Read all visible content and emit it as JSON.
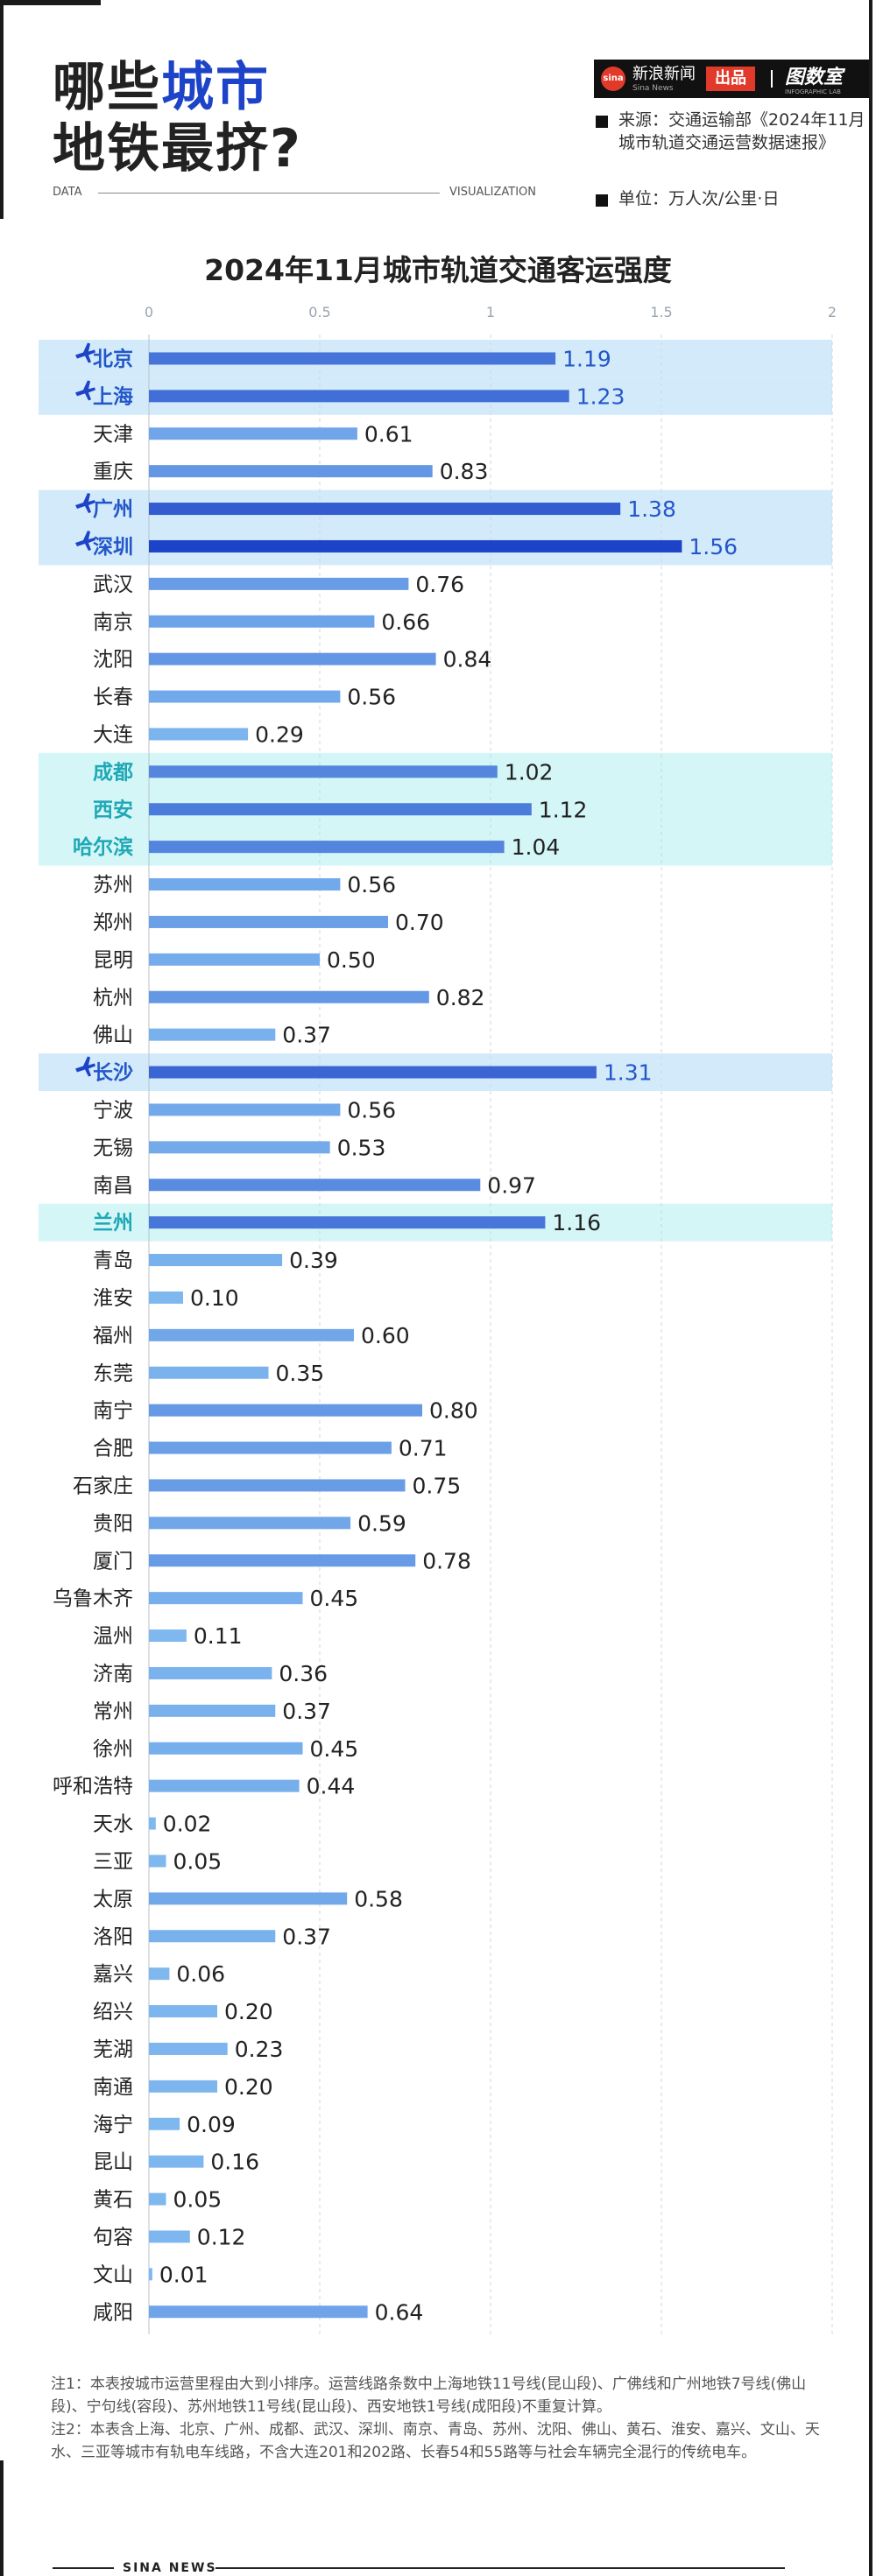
{
  "header": {
    "title_line1_pre": "哪些",
    "title_line1_hi": "城市",
    "title_line2": "地铁最挤?",
    "data_label": "DATA",
    "visualization_label": "VISUALIZATION"
  },
  "brand": {
    "logo_text": "sina",
    "name": "新浪新闻",
    "sub": "Sina News",
    "out_label": "出品",
    "lab": "图数室",
    "lab_sub": "INFOGRAPHIC LAB"
  },
  "meta": {
    "source": "来源：交通运输部《2024年11月城市轨道交通运营数据速报》",
    "unit": "单位：万人次/公里·日"
  },
  "colors": {
    "title_highlight": "#1d43c8",
    "bar_light": "#7fb8ef",
    "bar_dark": "#1d43c8",
    "band_blue": "#d3eafb",
    "band_teal": "#d4f6f7",
    "label_blue": "#2357c9",
    "label_teal": "#1fa8b6"
  },
  "chart_data": {
    "type": "bar",
    "orientation": "horizontal",
    "title": "2024年11月城市轨道交通客运强度",
    "xlim": [
      0,
      2
    ],
    "xticks": [
      "0",
      "0.5",
      "1",
      "1.5",
      "2"
    ],
    "grid": true,
    "categories": [
      "北京",
      "上海",
      "天津",
      "重庆",
      "广州",
      "深圳",
      "武汉",
      "南京",
      "沈阳",
      "长春",
      "大连",
      "成都",
      "西安",
      "哈尔滨",
      "苏州",
      "郑州",
      "昆明",
      "杭州",
      "佛山",
      "长沙",
      "宁波",
      "无锡",
      "南昌",
      "兰州",
      "青岛",
      "淮安",
      "福州",
      "东莞",
      "南宁",
      "合肥",
      "石家庄",
      "贵阳",
      "厦门",
      "乌鲁木齐",
      "温州",
      "济南",
      "常州",
      "徐州",
      "呼和浩特",
      "天水",
      "三亚",
      "太原",
      "洛阳",
      "嘉兴",
      "绍兴",
      "芜湖",
      "南通",
      "海宁",
      "昆山",
      "黄石",
      "句容",
      "文山",
      "咸阳"
    ],
    "values": [
      1.19,
      1.23,
      0.61,
      0.83,
      1.38,
      1.56,
      0.76,
      0.66,
      0.84,
      0.56,
      0.29,
      1.02,
      1.12,
      1.04,
      0.56,
      0.7,
      0.5,
      0.82,
      0.37,
      1.31,
      0.56,
      0.53,
      0.97,
      1.16,
      0.39,
      0.1,
      0.6,
      0.35,
      0.8,
      0.71,
      0.75,
      0.59,
      0.78,
      0.45,
      0.11,
      0.36,
      0.37,
      0.45,
      0.44,
      0.02,
      0.05,
      0.58,
      0.37,
      0.06,
      0.2,
      0.23,
      0.2,
      0.09,
      0.16,
      0.05,
      0.12,
      0.01,
      0.64
    ],
    "value_labels": [
      "1.19",
      "1.23",
      "0.61",
      "0.83",
      "1.38",
      "1.56",
      "0.76",
      "0.66",
      "0.84",
      "0.56",
      "0.29",
      "1.02",
      "1.12",
      "1.04",
      "0.56",
      "0.70",
      "0.50",
      "0.82",
      "0.37",
      "1.31",
      "0.56",
      "0.53",
      "0.97",
      "1.16",
      "0.39",
      "0.10",
      "0.60",
      "0.35",
      "0.80",
      "0.71",
      "0.75",
      "0.59",
      "0.78",
      "0.45",
      "0.11",
      "0.36",
      "0.37",
      "0.45",
      "0.44",
      "0.02",
      "0.05",
      "0.58",
      "0.37",
      "0.06",
      "0.20",
      "0.23",
      "0.20",
      "0.09",
      "0.16",
      "0.05",
      "0.12",
      "0.01",
      "0.64"
    ],
    "highlight_blue_with_plane_icon": [
      "北京",
      "上海",
      "广州",
      "深圳",
      "长沙"
    ],
    "highlight_teal": [
      "成都",
      "西安",
      "哈尔滨",
      "兰州"
    ]
  },
  "notes": [
    "注1：本表按城市运营里程由大到小排序。运营线路条数中上海地铁11号线(昆山段)、广佛线和广州地铁7号线(佛山段)、宁句线(容段)、苏州地铁11号线(昆山段)、西安地铁1号线(成阳段)不重复计算。",
    "注2：本表含上海、北京、广州、成都、武汉、深圳、南京、青岛、苏州、沈阳、佛山、黄石、淮安、嘉兴、文山、天水、三亚等城市有轨电车线路，不含大连201和202路、长春54和55路等与社会车辆完全混行的传统电车。"
  ],
  "footer": {
    "brand": "SINA NEWS"
  }
}
